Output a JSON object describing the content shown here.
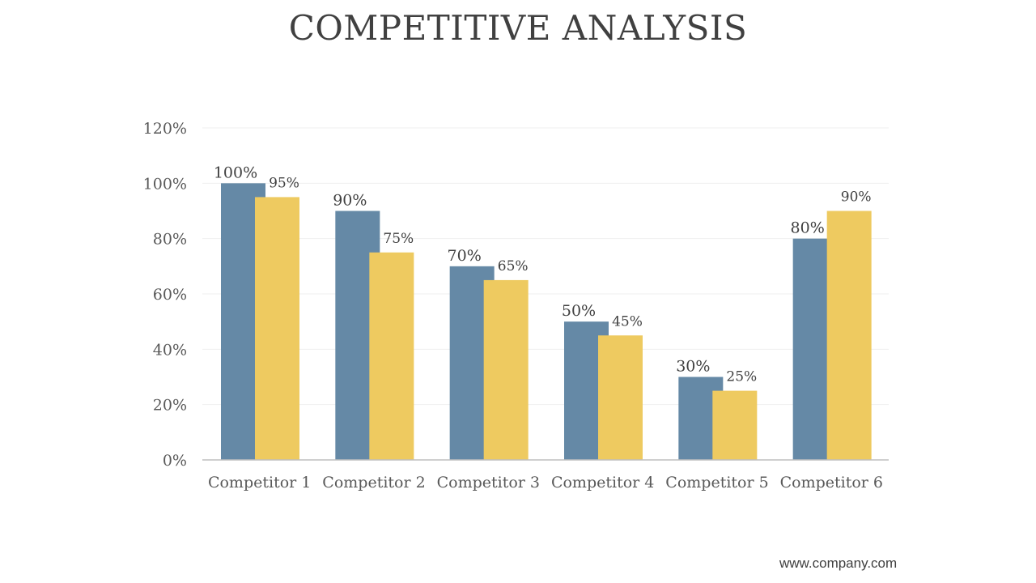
{
  "page": {
    "title": "COMPETITIVE ANALYSIS",
    "footer": "www.company.com"
  },
  "colors": {
    "series1": "#6589A6",
    "series2": "#EECA60",
    "gridline": "#EFEFEF",
    "axis": "#BFBFBF"
  },
  "chart_data": {
    "type": "bar",
    "title": "",
    "xlabel": "",
    "ylabel": "",
    "ylim": [
      0,
      120
    ],
    "yticks": [
      "0%",
      "20%",
      "40%",
      "60%",
      "80%",
      "100%",
      "120%"
    ],
    "ytick_values": [
      0,
      20,
      40,
      60,
      80,
      100,
      120
    ],
    "grid": true,
    "legend": "none",
    "categories": [
      "Competitor 1",
      "Competitor 2",
      "Competitor 3",
      "Competitor 4",
      "Competitor 5",
      "Competitor 6"
    ],
    "series": [
      {
        "values": [
          100,
          90,
          70,
          50,
          30,
          80
        ],
        "labels": [
          "100%",
          "90%",
          "70%",
          "50%",
          "30%",
          "80%"
        ]
      },
      {
        "values": [
          95,
          75,
          65,
          45,
          25,
          90
        ],
        "labels": [
          "95%",
          "75%",
          "65%",
          "45%",
          "25%",
          "90%"
        ]
      }
    ]
  }
}
